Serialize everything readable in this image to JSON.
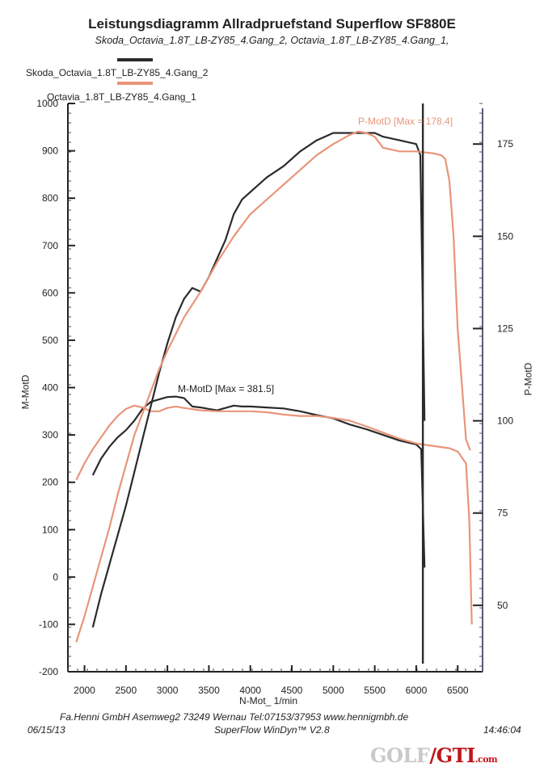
{
  "header": {
    "title": "Leistungsdiagramm Allradpruefstand Superflow SF880E",
    "subtitle": "Skoda_Octavia_1.8T_LB-ZY85_4.Gang_2, Octavia_1.8T_LB-ZY85_4.Gang_1,"
  },
  "legend": [
    {
      "label": "Skoda_Octavia_1.8T_LB-ZY85_4.Gang_2",
      "color": "#2b2b2b"
    },
    {
      "label": "Octavia_1.8T_LB-ZY85_4.Gang_1",
      "color": "#e8957a"
    }
  ],
  "footer": {
    "company": "Fa.Henni GmbH   Asemweg2   73249 Wernau   Tel:07153/37953   www.hennigmbh.de",
    "date": "06/15/13",
    "software": "SuperFlow WinDyn™ V2.8",
    "time": "14:46:04"
  },
  "watermark": {
    "part1": "GOLF",
    "part2": "GTI",
    "part3": ".com"
  },
  "chart_data": {
    "type": "line",
    "xlabel": "N-Mot_ 1/min",
    "ylabel_left": "M-MotD",
    "ylabel_right": "P-MotD",
    "xlim": [
      1800,
      6800
    ],
    "ylim_left": [
      -200,
      1000
    ],
    "ylim_right": [
      32,
      186
    ],
    "x_ticks": [
      2000,
      2500,
      3000,
      3500,
      4000,
      4500,
      5000,
      5500,
      6000,
      6500
    ],
    "y_ticks_left": [
      -200,
      -100,
      0,
      100,
      200,
      300,
      400,
      500,
      600,
      700,
      800,
      900,
      1000
    ],
    "y_ticks_right": [
      50,
      75,
      100,
      125,
      150,
      175
    ],
    "annotations": {
      "torque_max": "M-MotD [Max = 381.5]",
      "power_max": "P-MotD [Max = 178.4]"
    },
    "series": [
      {
        "name": "Skoda_Octavia_1.8T_LB-ZY85_4.Gang_2",
        "quantity": "M-MotD",
        "axis": "left",
        "color": "#2b2b2b",
        "x": [
          2100,
          2200,
          2300,
          2400,
          2500,
          2600,
          2700,
          2800,
          2900,
          3000,
          3100,
          3200,
          3300,
          3400,
          3500,
          3600,
          3700,
          3800,
          3900,
          4000,
          4200,
          4400,
          4600,
          4800,
          5000,
          5200,
          5400,
          5600,
          5800,
          6000,
          6060,
          6080,
          6100
        ],
        "y": [
          215,
          250,
          275,
          295,
          310,
          330,
          355,
          370,
          375,
          380,
          381,
          378,
          360,
          358,
          355,
          352,
          357,
          362,
          360,
          360,
          358,
          356,
          350,
          342,
          335,
          322,
          312,
          300,
          288,
          280,
          270,
          150,
          20
        ]
      },
      {
        "name": "Octavia_1.8T_LB-ZY85_4.Gang_1",
        "quantity": "M-MotD",
        "axis": "left",
        "color": "#e8957a",
        "x": [
          1900,
          2000,
          2100,
          2200,
          2300,
          2400,
          2500,
          2600,
          2700,
          2800,
          2900,
          3000,
          3100,
          3200,
          3400,
          3600,
          3800,
          4000,
          4200,
          4400,
          4600,
          4800,
          5000,
          5200,
          5400,
          5600,
          5800,
          6000,
          6200,
          6400,
          6500,
          6600,
          6640,
          6670
        ],
        "y": [
          205,
          240,
          270,
          295,
          320,
          340,
          355,
          362,
          358,
          350,
          350,
          357,
          360,
          357,
          352,
          350,
          350,
          350,
          348,
          343,
          340,
          340,
          336,
          330,
          318,
          305,
          292,
          282,
          277,
          272,
          265,
          240,
          120,
          -100
        ]
      },
      {
        "name": "Skoda_Octavia_1.8T_LB-ZY85_4.Gang_2",
        "quantity": "P-MotD",
        "axis": "right",
        "color": "#2b2b2b",
        "x": [
          2100,
          2200,
          2300,
          2400,
          2500,
          2600,
          2700,
          2800,
          2900,
          3000,
          3100,
          3200,
          3300,
          3400,
          3500,
          3600,
          3700,
          3800,
          3900,
          4000,
          4200,
          4400,
          4600,
          4800,
          5000,
          5200,
          5400,
          5500,
          5600,
          5800,
          6000,
          6050,
          6080,
          6100
        ],
        "y": [
          44,
          53,
          61,
          69,
          77,
          86,
          95,
          104,
          113,
          121,
          128,
          133,
          136,
          135,
          139,
          144,
          149,
          156,
          160,
          162,
          166,
          169,
          173,
          176,
          178,
          178,
          178,
          178,
          177,
          176,
          175,
          172,
          130,
          100
        ]
      },
      {
        "name": "Octavia_1.8T_LB-ZY85_4.Gang_1",
        "quantity": "P-MotD",
        "axis": "right",
        "color": "#e8957a",
        "x": [
          1900,
          2000,
          2100,
          2200,
          2300,
          2400,
          2500,
          2600,
          2700,
          2800,
          2900,
          3000,
          3200,
          3400,
          3600,
          3800,
          4000,
          4200,
          4400,
          4600,
          4800,
          5000,
          5200,
          5300,
          5400,
          5500,
          5600,
          5800,
          6000,
          6200,
          6300,
          6350,
          6400,
          6450,
          6500,
          6600,
          6650
        ],
        "y": [
          40,
          47,
          55,
          63,
          71,
          80,
          88,
          96,
          102,
          108,
          114,
          119,
          128,
          135,
          143,
          150,
          156,
          160,
          164,
          168,
          172,
          175,
          177.5,
          178.4,
          178,
          177,
          174,
          173,
          173,
          172.5,
          172,
          171,
          165,
          150,
          125,
          95,
          92
        ]
      }
    ]
  }
}
